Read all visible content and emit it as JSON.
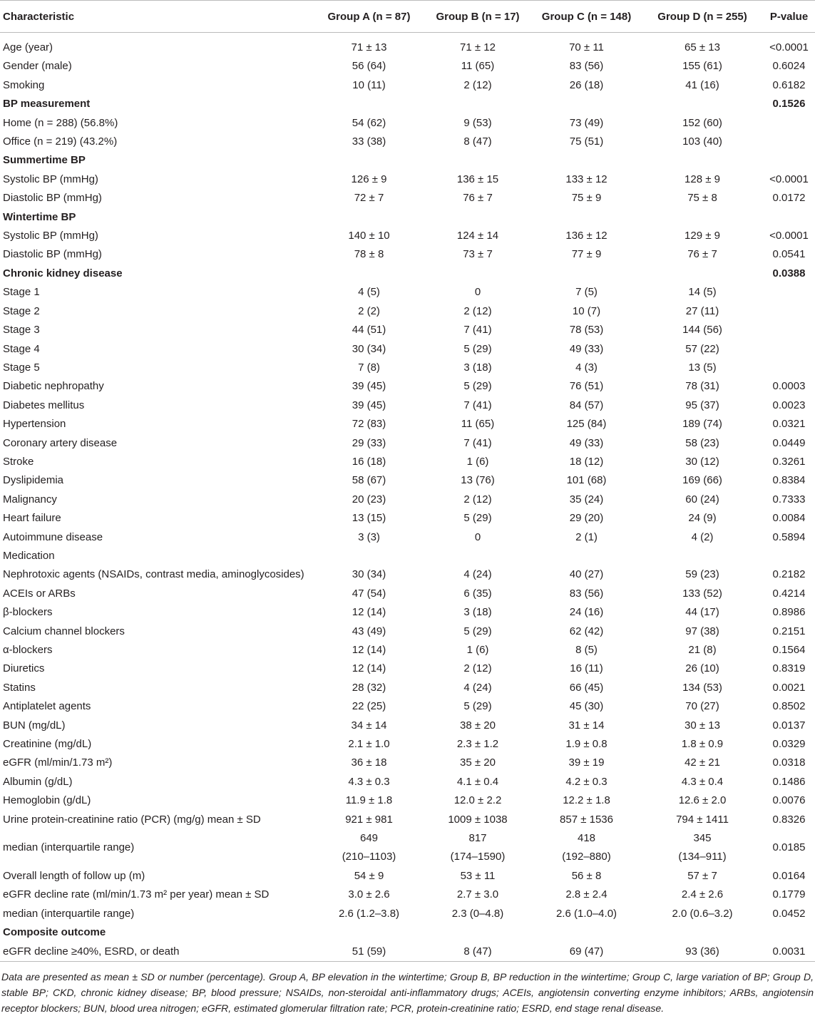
{
  "table": {
    "header": [
      "Characteristic",
      "Group A (n = 87)",
      "Group B (n = 17)",
      "Group C (n = 148)",
      "Group D (n = 255)",
      "P-value"
    ],
    "rows": [
      {
        "cells": [
          "Age (year)",
          "71 ± 13",
          "71 ± 12",
          "70 ± 11",
          "65 ± 13",
          "<0.0001"
        ]
      },
      {
        "cells": [
          "Gender (male)",
          "56 (64)",
          "11 (65)",
          "83 (56)",
          "155 (61)",
          "0.6024"
        ]
      },
      {
        "cells": [
          "Smoking",
          "10 (11)",
          "2 (12)",
          "26 (18)",
          "41 (16)",
          "0.6182"
        ]
      },
      {
        "cells": [
          "BP measurement",
          null,
          null,
          null,
          null,
          "0.1526"
        ],
        "bold": true
      },
      {
        "cells": [
          "Home (n = 288) (56.8%)",
          "54 (62)",
          "9 (53)",
          "73 (49)",
          "152 (60)",
          null
        ]
      },
      {
        "cells": [
          "Office (n = 219) (43.2%)",
          "33 (38)",
          "8 (47)",
          "75 (51)",
          "103 (40)",
          null
        ]
      },
      {
        "cells": [
          "Summertime BP",
          null,
          null,
          null,
          null,
          null
        ],
        "bold": true
      },
      {
        "cells": [
          "Systolic BP (mmHg)",
          "126 ± 9",
          "136 ± 15",
          "133 ± 12",
          "128 ± 9",
          "<0.0001"
        ]
      },
      {
        "cells": [
          "Diastolic BP (mmHg)",
          "72 ± 7",
          "76 ± 7",
          "75 ± 9",
          "75 ± 8",
          "0.0172"
        ]
      },
      {
        "cells": [
          "Wintertime BP",
          null,
          null,
          null,
          null,
          null
        ],
        "bold": true
      },
      {
        "cells": [
          "Systolic BP (mmHg)",
          "140 ± 10",
          "124 ± 14",
          "136 ± 12",
          "129 ± 9",
          "<0.0001"
        ]
      },
      {
        "cells": [
          "Diastolic BP (mmHg)",
          "78 ± 8",
          "73 ± 7",
          "77 ± 9",
          "76 ± 7",
          "0.0541"
        ]
      },
      {
        "cells": [
          "Chronic kidney disease",
          null,
          null,
          null,
          null,
          "0.0388"
        ],
        "bold": true
      },
      {
        "cells": [
          "Stage 1",
          "4 (5)",
          "0",
          "7 (5)",
          "14 (5)",
          null
        ]
      },
      {
        "cells": [
          "Stage 2",
          "2 (2)",
          "2 (12)",
          "10 (7)",
          "27 (11)",
          null
        ]
      },
      {
        "cells": [
          "Stage 3",
          "44 (51)",
          "7 (41)",
          "78 (53)",
          "144 (56)",
          null
        ]
      },
      {
        "cells": [
          "Stage 4",
          "30 (34)",
          "5 (29)",
          "49 (33)",
          "57 (22)",
          null
        ]
      },
      {
        "cells": [
          "Stage 5",
          "7 (8)",
          "3 (18)",
          "4 (3)",
          "13 (5)",
          null
        ]
      },
      {
        "cells": [
          "Diabetic nephropathy",
          "39 (45)",
          "5 (29)",
          "76 (51)",
          "78 (31)",
          "0.0003"
        ]
      },
      {
        "cells": [
          "Diabetes mellitus",
          "39 (45)",
          "7 (41)",
          "84 (57)",
          "95 (37)",
          "0.0023"
        ]
      },
      {
        "cells": [
          "Hypertension",
          "72 (83)",
          "11 (65)",
          "125 (84)",
          "189 (74)",
          "0.0321"
        ]
      },
      {
        "cells": [
          "Coronary artery disease",
          "29 (33)",
          "7 (41)",
          "49 (33)",
          "58 (23)",
          "0.0449"
        ]
      },
      {
        "cells": [
          "Stroke",
          "16 (18)",
          "1 (6)",
          "18 (12)",
          "30 (12)",
          "0.3261"
        ]
      },
      {
        "cells": [
          "Dyslipidemia",
          "58 (67)",
          "13 (76)",
          "101 (68)",
          "169 (66)",
          "0.8384"
        ]
      },
      {
        "cells": [
          "Malignancy",
          "20 (23)",
          "2 (12)",
          "35 (24)",
          "60 (24)",
          "0.7333"
        ]
      },
      {
        "cells": [
          "Heart failure",
          "13 (15)",
          "5 (29)",
          "29 (20)",
          "24 (9)",
          "0.0084"
        ]
      },
      {
        "cells": [
          "Autoimmune disease",
          "3 (3)",
          "0",
          "2 (1)",
          "4 (2)",
          "0.5894"
        ]
      },
      {
        "cells": [
          "Medication",
          null,
          null,
          null,
          null,
          null
        ]
      },
      {
        "cells": [
          "Nephrotoxic agents (NSAIDs, contrast media, aminoglycosides)",
          "30 (34)",
          "4 (24)",
          "40 (27)",
          "59 (23)",
          "0.2182"
        ]
      },
      {
        "cells": [
          "ACEIs or ARBs",
          "47 (54)",
          "6 (35)",
          "83 (56)",
          "133 (52)",
          "0.4214"
        ]
      },
      {
        "cells": [
          "β-blockers",
          "12 (14)",
          "3 (18)",
          "24 (16)",
          "44 (17)",
          "0.8986"
        ]
      },
      {
        "cells": [
          "Calcium channel blockers",
          "43 (49)",
          "5 (29)",
          "62 (42)",
          "97 (38)",
          "0.2151"
        ]
      },
      {
        "cells": [
          "α-blockers",
          "12 (14)",
          "1 (6)",
          "8 (5)",
          "21 (8)",
          "0.1564"
        ]
      },
      {
        "cells": [
          "Diuretics",
          "12 (14)",
          "2 (12)",
          "16 (11)",
          "26 (10)",
          "0.8319"
        ]
      },
      {
        "cells": [
          "Statins",
          "28 (32)",
          "4 (24)",
          "66 (45)",
          "134 (53)",
          "0.0021"
        ]
      },
      {
        "cells": [
          "Antiplatelet agents",
          "22 (25)",
          "5 (29)",
          "45 (30)",
          "70 (27)",
          "0.8502"
        ]
      },
      {
        "cells": [
          "BUN (mg/dL)",
          "34 ± 14",
          "38 ± 20",
          "31 ± 14",
          "30 ± 13",
          "0.0137"
        ]
      },
      {
        "cells": [
          "Creatinine (mg/dL)",
          "2.1 ± 1.0",
          "2.3 ± 1.2",
          "1.9 ± 0.8",
          "1.8 ± 0.9",
          "0.0329"
        ]
      },
      {
        "cells": [
          "eGFR (ml/min/1.73 m²)",
          "36 ± 18",
          "35 ± 20",
          "39 ± 19",
          "42 ± 21",
          "0.0318"
        ]
      },
      {
        "cells": [
          "Albumin (g/dL)",
          "4.3 ± 0.3",
          "4.1 ± 0.4",
          "4.2 ± 0.3",
          "4.3 ± 0.4",
          "0.1486"
        ]
      },
      {
        "cells": [
          "Hemoglobin (g/dL)",
          "11.9 ± 1.8",
          "12.0 ± 2.2",
          "12.2 ± 1.8",
          "12.6 ± 2.0",
          "0.0076"
        ]
      },
      {
        "cells": [
          "Urine protein-creatinine ratio (PCR) (mg/g) mean ± SD",
          "921 ± 981",
          "1009 ± 1038",
          "857 ± 1536",
          "794 ± 1411",
          "0.8326"
        ]
      },
      {
        "cells": [
          "median (interquartile range)",
          "649\n(210–1103)",
          "817\n(174–1590)",
          "418\n(192–880)",
          "345\n(134–911)",
          "0.0185"
        ]
      },
      {
        "cells": [
          "Overall length of follow up (m)",
          "54 ± 9",
          "53 ± 11",
          "56 ± 8",
          "57 ± 7",
          "0.0164"
        ]
      },
      {
        "cells": [
          "eGFR decline rate (ml/min/1.73 m² per year) mean ± SD",
          "3.0 ± 2.6",
          "2.7 ± 3.0",
          "2.8 ± 2.4",
          "2.4 ± 2.6",
          "0.1779"
        ]
      },
      {
        "cells": [
          "median (interquartile range)",
          "2.6 (1.2–3.8)",
          "2.3 (0–4.8)",
          "2.6 (1.0–4.0)",
          "2.0 (0.6–3.2)",
          "0.0452"
        ]
      },
      {
        "cells": [
          "Composite outcome",
          null,
          null,
          null,
          null,
          null
        ],
        "bold": true
      },
      {
        "cells": [
          "eGFR decline ≥40%, ESRD, or death",
          "51 (59)",
          "8 (47)",
          "69 (47)",
          "93 (36)",
          "0.0031"
        ]
      }
    ]
  },
  "footnote": "Data are presented as mean ± SD or number (percentage). Group A, BP elevation in the wintertime; Group B, BP reduction in the wintertime; Group C, large variation of BP; Group D, stable BP; CKD, chronic kidney disease; BP, blood pressure; NSAIDs, non-steroidal anti-inflammatory drugs; ACEIs, angiotensin converting enzyme inhibitors; ARBs, angiotensin receptor blockers; BUN, blood urea nitrogen; eGFR, estimated glomerular filtration rate; PCR, protein-creatinine ratio; ESRD, end stage renal disease."
}
